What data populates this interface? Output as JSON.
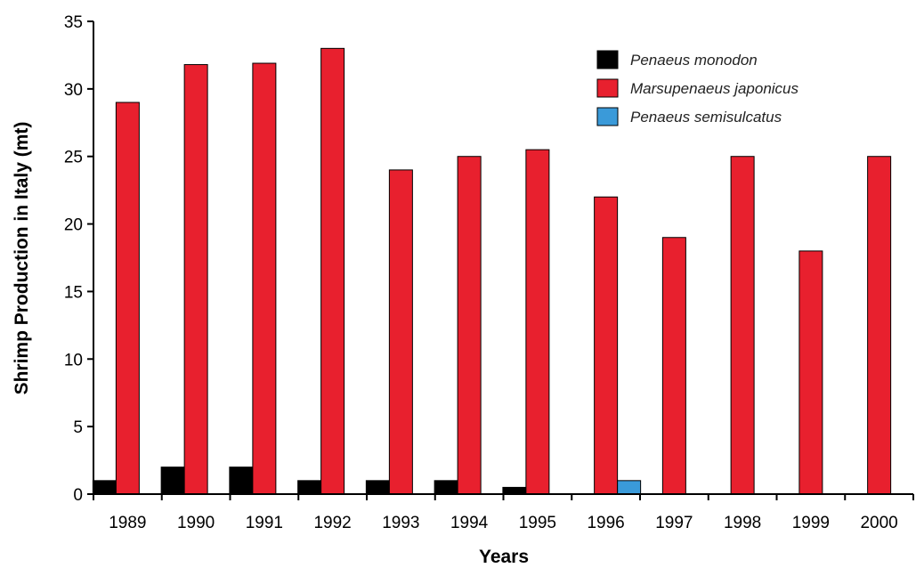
{
  "chart_data": {
    "type": "bar",
    "title": "",
    "xlabel": "Years",
    "ylabel": "Shrimp Production in Italy (mt)",
    "categories": [
      "1989",
      "1990",
      "1991",
      "1992",
      "1993",
      "1994",
      "1995",
      "1996",
      "1997",
      "1998",
      "1999",
      "2000"
    ],
    "yticks": [
      0,
      5,
      10,
      15,
      20,
      25,
      30,
      35
    ],
    "ylim": [
      0,
      35
    ],
    "grid": false,
    "legend_position": "top-right",
    "series": [
      {
        "name": "Penaeus monodon",
        "color": "#000000",
        "values": [
          1,
          2,
          2,
          1,
          1,
          1,
          0.5,
          0,
          0,
          0,
          0,
          0
        ]
      },
      {
        "name": "Marsupenaeus japonicus",
        "color": "#e8202e",
        "values": [
          29,
          31.8,
          31.9,
          33,
          24,
          25,
          25.5,
          22,
          19,
          25,
          18,
          25
        ]
      },
      {
        "name": "Penaeus semisulcatus",
        "color": "#3a9ad9",
        "values": [
          0,
          0,
          0,
          0,
          0,
          0,
          0,
          1,
          0,
          0,
          0,
          0
        ]
      }
    ]
  }
}
